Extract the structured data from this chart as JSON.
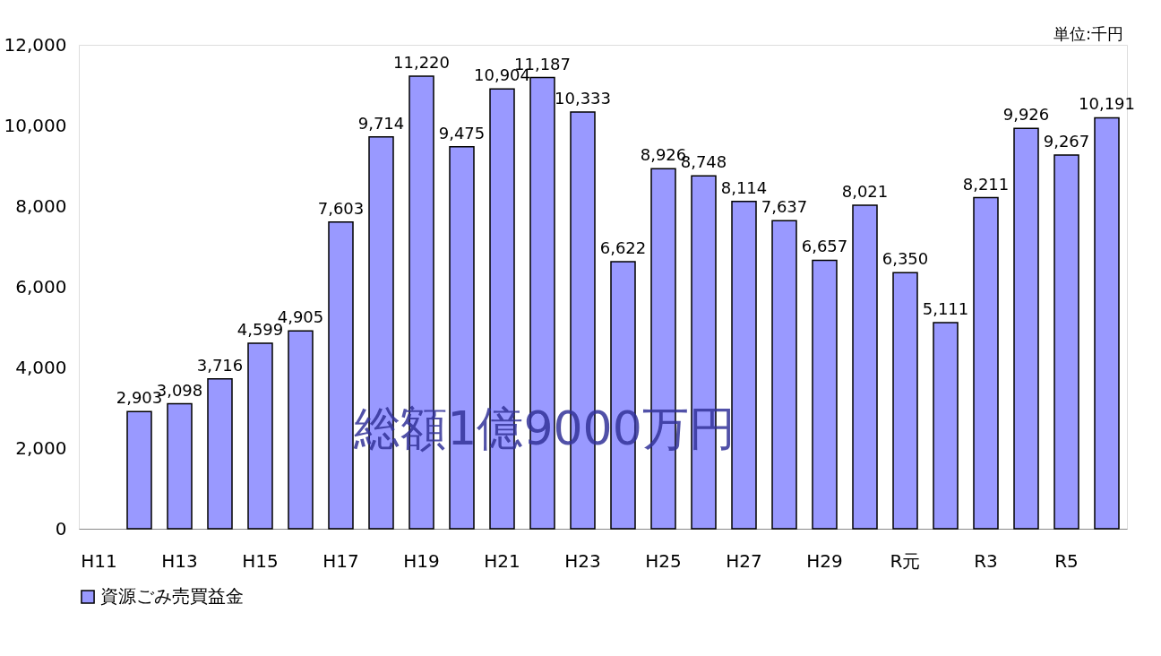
{
  "chart_data": {
    "type": "bar",
    "categories": [
      "H11",
      null,
      "H13",
      null,
      "H15",
      null,
      "H17",
      null,
      "H19",
      null,
      "H21",
      null,
      "H23",
      null,
      "H25",
      null,
      "H27",
      null,
      "H29",
      null,
      "R元",
      null,
      "R3",
      null,
      "R5",
      null
    ],
    "series": [
      {
        "name": "資源ごみ売買益金",
        "color": "#9999ff",
        "values": [
          null,
          2903,
          3098,
          3716,
          4599,
          4905,
          7603,
          9714,
          11220,
          9475,
          10904,
          11187,
          10333,
          6622,
          8926,
          8748,
          8114,
          7637,
          6657,
          8021,
          6350,
          5111,
          8211,
          9926,
          9267,
          10191
        ],
        "value_labels": [
          null,
          "2,903",
          "3,098",
          "3,716",
          "4,599",
          "4,905",
          "7,603",
          "9,714",
          "11,220",
          "9,475",
          "10,904",
          "11,187",
          "10,333",
          "6,622",
          "8,926",
          "8,748",
          "8,114",
          "7,637",
          "6,657",
          "8,021",
          "6,350",
          "5,111",
          "8,211",
          "9,926",
          "9,267",
          "10,191"
        ]
      }
    ],
    "ylim": [
      0,
      12000
    ],
    "yticks": [
      0,
      {
        "value": 2000,
        "label": "2,000"
      },
      {
        "value": 4000,
        "label": "4,000"
      },
      {
        "value": 6000,
        "label": "6,000"
      },
      {
        "value": 8000,
        "label": "8,000"
      },
      {
        "value": 10000,
        "label": "10,000"
      },
      {
        "value": 12000,
        "label": "12,000"
      }
    ],
    "grid": false,
    "legend": "bottom",
    "annotations": [
      "単位:千円",
      "総額1億9000万円"
    ]
  }
}
